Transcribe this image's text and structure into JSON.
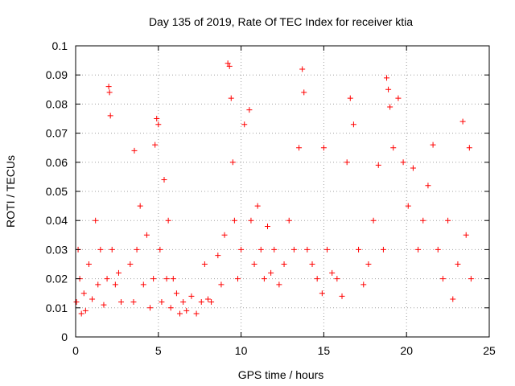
{
  "chart_data": {
    "type": "scatter",
    "title": "Day 135 of 2019, Rate Of TEC Index for receiver ktia",
    "xlabel": "GPS time / hours",
    "ylabel": "ROTI / TECUs",
    "xlim": [
      0,
      25
    ],
    "ylim": [
      0,
      0.1
    ],
    "xticks": [
      0,
      5,
      10,
      15,
      20,
      25
    ],
    "xtick_labels": [
      "0",
      "5",
      "10",
      "15",
      "20",
      "25"
    ],
    "yticks": [
      0,
      0.01,
      0.02,
      0.03,
      0.04,
      0.05,
      0.06,
      0.07,
      0.08,
      0.09,
      0.1
    ],
    "ytick_labels": [
      "0",
      "0.01",
      "0.02",
      "0.03",
      "0.04",
      "0.05",
      "0.06",
      "0.07",
      "0.08",
      "0.09",
      "0.1"
    ],
    "grid": true,
    "marker": "plus",
    "color": "#ff0000",
    "series": [
      {
        "name": "ROTI",
        "x": [
          0.05,
          0.15,
          0.25,
          0.35,
          0.5,
          0.6,
          0.8,
          1.0,
          1.2,
          1.35,
          1.5,
          1.7,
          1.9,
          2.0,
          2.05,
          2.1,
          2.2,
          2.4,
          2.6,
          2.75,
          3.3,
          3.5,
          3.55,
          3.7,
          3.9,
          4.1,
          4.3,
          4.5,
          4.7,
          4.8,
          4.9,
          5.0,
          5.1,
          5.2,
          5.35,
          5.5,
          5.6,
          5.75,
          5.9,
          6.1,
          6.3,
          6.5,
          6.7,
          7.0,
          7.3,
          7.6,
          7.8,
          8.0,
          8.2,
          8.6,
          8.8,
          9.0,
          9.2,
          9.3,
          9.4,
          9.5,
          9.6,
          9.8,
          10.0,
          10.2,
          10.5,
          10.6,
          10.8,
          11.0,
          11.2,
          11.4,
          11.6,
          11.8,
          12.0,
          12.3,
          12.6,
          12.9,
          13.2,
          13.5,
          13.7,
          13.8,
          14.0,
          14.3,
          14.6,
          14.9,
          15.0,
          15.2,
          15.5,
          15.8,
          16.1,
          16.4,
          16.6,
          16.8,
          17.1,
          17.4,
          17.7,
          18.0,
          18.3,
          18.6,
          18.8,
          18.9,
          19.0,
          19.2,
          19.5,
          19.8,
          20.1,
          20.4,
          20.7,
          21.0,
          21.3,
          21.6,
          21.9,
          22.2,
          22.5,
          22.8,
          23.1,
          23.4,
          23.6,
          23.8,
          23.9
        ],
        "y": [
          0.012,
          0.03,
          0.02,
          0.008,
          0.015,
          0.009,
          0.025,
          0.013,
          0.04,
          0.018,
          0.03,
          0.011,
          0.02,
          0.086,
          0.084,
          0.076,
          0.03,
          0.018,
          0.022,
          0.012,
          0.025,
          0.012,
          0.064,
          0.03,
          0.045,
          0.018,
          0.035,
          0.01,
          0.02,
          0.066,
          0.075,
          0.073,
          0.03,
          0.012,
          0.054,
          0.02,
          0.04,
          0.01,
          0.02,
          0.015,
          0.008,
          0.012,
          0.009,
          0.014,
          0.008,
          0.012,
          0.025,
          0.013,
          0.012,
          0.028,
          0.018,
          0.035,
          0.094,
          0.093,
          0.082,
          0.06,
          0.04,
          0.02,
          0.03,
          0.073,
          0.078,
          0.04,
          0.025,
          0.045,
          0.03,
          0.02,
          0.038,
          0.022,
          0.03,
          0.018,
          0.025,
          0.04,
          0.03,
          0.065,
          0.092,
          0.084,
          0.03,
          0.025,
          0.02,
          0.015,
          0.065,
          0.03,
          0.022,
          0.02,
          0.014,
          0.06,
          0.082,
          0.073,
          0.03,
          0.018,
          0.025,
          0.04,
          0.059,
          0.03,
          0.089,
          0.085,
          0.079,
          0.065,
          0.082,
          0.06,
          0.045,
          0.058,
          0.03,
          0.04,
          0.052,
          0.066,
          0.03,
          0.02,
          0.04,
          0.013,
          0.025,
          0.074,
          0.035,
          0.065,
          0.02
        ]
      }
    ]
  }
}
